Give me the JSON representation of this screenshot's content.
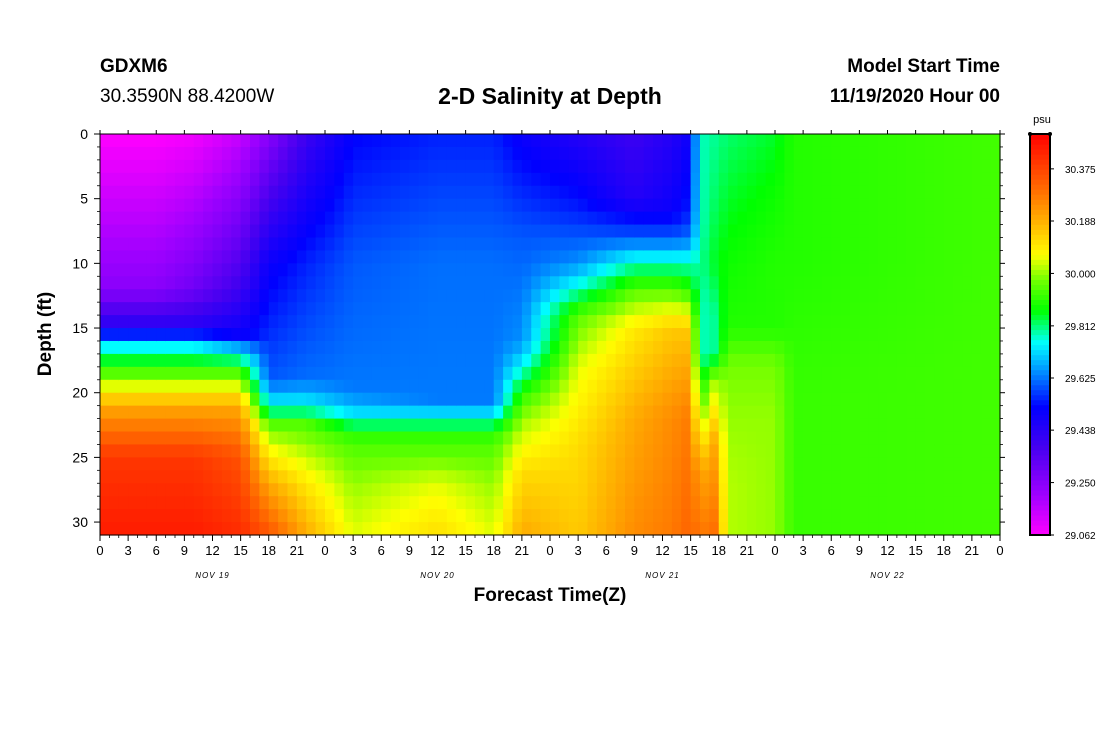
{
  "header": {
    "station": "GDXM6",
    "coords": "30.3590N 88.4200W",
    "title": "2-D Salinity at Depth",
    "start_label": "Model Start Time",
    "start_value": "11/19/2020 Hour 00"
  },
  "chart_data": {
    "type": "heatmap",
    "title": "2-D Salinity at Depth",
    "xlabel": "Forecast Time(Z)",
    "ylabel": "Depth (ft)",
    "xlim": [
      0,
      96
    ],
    "ylim": [
      31,
      0
    ],
    "x_ticks": [
      0,
      3,
      6,
      9,
      12,
      15,
      18,
      21,
      24,
      27,
      30,
      33,
      36,
      39,
      42,
      45,
      48,
      51,
      54,
      57,
      60,
      63,
      66,
      69,
      72,
      75,
      78,
      81,
      84,
      87,
      90,
      93,
      96
    ],
    "x_tick_labels": [
      "0",
      "3",
      "6",
      "9",
      "12",
      "15",
      "18",
      "21",
      "0",
      "3",
      "6",
      "9",
      "12",
      "15",
      "18",
      "21",
      "0",
      "3",
      "6",
      "9",
      "12",
      "15",
      "18",
      "21",
      "0",
      "3",
      "6",
      "9",
      "12",
      "15",
      "18",
      "21",
      "0"
    ],
    "y_ticks": [
      0,
      5,
      10,
      15,
      20,
      25,
      30
    ],
    "y_tick_labels": [
      "0",
      "5",
      "10",
      "15",
      "20",
      "25",
      "30"
    ],
    "date_labels": [
      {
        "x": 12,
        "label": "NOV 19"
      },
      {
        "x": 36,
        "label": "NOV 20"
      },
      {
        "x": 60,
        "label": "NOV 21"
      },
      {
        "x": 84,
        "label": "NOV 22"
      }
    ],
    "colorbar": {
      "unit": "psu",
      "min": 29.062,
      "max": 30.5,
      "ticks": [
        29.062,
        29.25,
        29.438,
        29.625,
        29.812,
        30.0,
        30.188,
        30.375
      ],
      "tick_labels": [
        "29.062",
        "29.250",
        "29.438",
        "29.625",
        "29.812",
        "30.000",
        "30.188",
        "30.375"
      ]
    },
    "grid": false,
    "depth_levels": [
      0,
      1,
      2,
      3,
      4,
      5,
      6,
      7,
      8,
      9,
      10,
      11,
      12,
      13,
      14,
      15,
      16,
      17,
      18,
      19,
      20,
      21,
      22,
      23,
      24,
      25,
      26,
      27,
      28,
      29,
      30,
      31
    ],
    "profiles": [
      {
        "time": 0,
        "depths": [
          0,
          12,
          15,
          16.5,
          18.5,
          21,
          25,
          31
        ],
        "values": [
          29.062,
          29.25,
          29.45,
          29.75,
          29.95,
          30.2,
          30.4,
          30.45
        ]
      },
      {
        "time": 6,
        "depths": [
          0,
          12,
          15,
          16.5,
          18.5,
          21,
          25,
          31
        ],
        "values": [
          29.062,
          29.25,
          29.45,
          29.75,
          29.95,
          30.2,
          30.4,
          30.45
        ]
      },
      {
        "time": 10,
        "depths": [
          0,
          12,
          15,
          16.5,
          18.5,
          21,
          25,
          31
        ],
        "values": [
          29.08,
          29.3,
          29.45,
          29.75,
          29.95,
          30.2,
          30.4,
          30.45
        ]
      },
      {
        "time": 15,
        "depths": [
          0,
          12,
          15.5,
          17,
          18.5,
          21,
          25,
          31
        ],
        "values": [
          29.15,
          29.4,
          29.5,
          29.75,
          29.95,
          30.2,
          30.35,
          30.42
        ]
      },
      {
        "time": 18,
        "depths": [
          0,
          10,
          19,
          21,
          22.5,
          24,
          27,
          31
        ],
        "values": [
          29.25,
          29.5,
          29.6,
          29.75,
          29.95,
          30.05,
          30.2,
          30.35
        ]
      },
      {
        "time": 22,
        "depths": [
          0,
          10,
          19,
          21,
          22.5,
          24,
          27,
          31
        ],
        "values": [
          29.4,
          29.55,
          29.62,
          29.75,
          29.95,
          30.0,
          30.1,
          30.2
        ]
      },
      {
        "time": 27,
        "depths": [
          0,
          10,
          20,
          22,
          23,
          24.5,
          27,
          31
        ],
        "values": [
          29.52,
          29.6,
          29.63,
          29.75,
          29.9,
          29.95,
          30.0,
          30.05
        ]
      },
      {
        "time": 36,
        "depths": [
          0,
          10,
          20.5,
          22,
          23,
          24.5,
          27,
          31
        ],
        "values": [
          29.55,
          29.62,
          29.63,
          29.75,
          29.9,
          29.95,
          30.05,
          30.12
        ]
      },
      {
        "time": 42,
        "depths": [
          0,
          10,
          20.5,
          22,
          23,
          24.5,
          27,
          31
        ],
        "values": [
          29.55,
          29.62,
          29.63,
          29.75,
          29.9,
          29.95,
          30.0,
          30.05
        ]
      },
      {
        "time": 45,
        "depths": [
          0,
          8,
          16,
          18,
          20,
          22,
          26,
          31
        ],
        "values": [
          29.5,
          29.6,
          29.65,
          29.75,
          29.9,
          30.0,
          30.12,
          30.2
        ]
      },
      {
        "time": 51,
        "depths": [
          0,
          6,
          10,
          12,
          14,
          18,
          24,
          31
        ],
        "values": [
          29.45,
          29.55,
          29.65,
          29.78,
          29.95,
          30.05,
          30.12,
          30.15
        ]
      },
      {
        "time": 57,
        "depths": [
          0,
          5,
          8,
          10,
          12,
          15,
          22,
          31
        ],
        "values": [
          29.4,
          29.45,
          29.6,
          29.78,
          29.95,
          30.1,
          30.2,
          30.25
        ]
      },
      {
        "time": 61,
        "depths": [
          0,
          6,
          8,
          10,
          12,
          15,
          22,
          31
        ],
        "values": [
          29.45,
          29.5,
          29.6,
          29.78,
          29.95,
          30.15,
          30.25,
          30.28
        ]
      },
      {
        "time": 63,
        "depths": [
          0,
          6,
          8,
          10,
          12,
          15,
          22,
          31
        ],
        "values": [
          29.5,
          29.55,
          29.62,
          29.78,
          29.9,
          30.15,
          30.28,
          30.32
        ]
      },
      {
        "time": 64,
        "depths": [
          0,
          7,
          10,
          13,
          17,
          21,
          26,
          31
        ],
        "values": [
          29.78,
          29.78,
          29.8,
          29.78,
          29.78,
          29.95,
          30.2,
          30.28
        ]
      },
      {
        "time": 65.5,
        "depths": [
          0,
          5,
          10,
          14,
          17,
          19,
          24,
          31
        ],
        "values": [
          29.8,
          29.82,
          29.85,
          29.8,
          29.8,
          30.0,
          30.2,
          30.3
        ]
      },
      {
        "time": 67,
        "depths": [
          0,
          5,
          10,
          15,
          18,
          22,
          27,
          31
        ],
        "values": [
          29.82,
          29.85,
          29.88,
          29.9,
          29.98,
          30.0,
          30.02,
          30.02
        ]
      },
      {
        "time": 72,
        "depths": [
          0,
          5,
          10,
          15,
          18,
          22,
          27,
          31
        ],
        "values": [
          29.85,
          29.88,
          29.9,
          29.9,
          29.98,
          30.0,
          30.0,
          30.0
        ]
      },
      {
        "time": 74,
        "depths": [
          0,
          10,
          20,
          31
        ],
        "values": [
          29.9,
          29.9,
          29.92,
          29.92
        ]
      },
      {
        "time": 96,
        "depths": [
          0,
          10,
          20,
          31
        ],
        "values": [
          29.93,
          29.93,
          29.93,
          29.93
        ]
      }
    ]
  }
}
